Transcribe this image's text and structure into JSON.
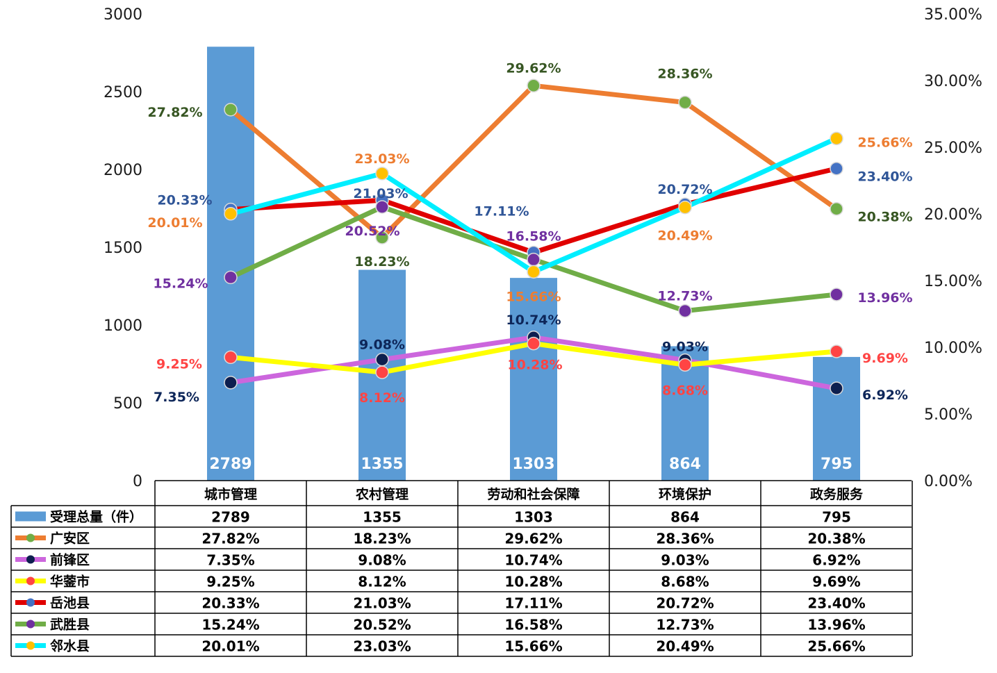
{
  "chart_data": {
    "type": "bar+line",
    "categories": [
      "城市管理",
      "农村管理",
      "劳动和社会保障",
      "环境保护",
      "政务服务"
    ],
    "bar_series": {
      "name": "受理总量（件）",
      "values": [
        2789,
        1355,
        1303,
        864,
        795
      ],
      "value_labels": [
        "2789",
        "1355",
        "1303",
        "864",
        "795"
      ],
      "color": "#5B9BD5"
    },
    "line_series": [
      {
        "name": "广安区",
        "values": [
          27.82,
          18.23,
          29.62,
          28.36,
          20.38
        ],
        "labels": [
          "27.82%",
          "18.23%",
          "29.62%",
          "28.36%",
          "20.38%"
        ],
        "color": "#ED7D31",
        "marker_color": "#70AD47",
        "label_color": "#375623"
      },
      {
        "name": "前锋区",
        "values": [
          7.35,
          9.08,
          10.74,
          9.03,
          6.92
        ],
        "labels": [
          "7.35%",
          "9.08%",
          "10.74%",
          "9.03%",
          "6.92%"
        ],
        "color": "#CC66DD",
        "marker_color": "#0D1F4F",
        "label_color": "#0D2659"
      },
      {
        "name": "华蓥市",
        "values": [
          9.25,
          8.12,
          10.28,
          8.68,
          9.69
        ],
        "labels": [
          "9.25%",
          "8.12%",
          "10.28%",
          "8.68%",
          "9.69%"
        ],
        "color": "#FFFF00",
        "marker_color": "#FF4444",
        "label_color": "#FF4444"
      },
      {
        "name": "岳池县",
        "values": [
          20.33,
          21.03,
          17.11,
          20.72,
          23.4
        ],
        "labels": [
          "20.33%",
          "21.03%",
          "17.11%",
          "20.72%",
          "23.40%"
        ],
        "color": "#E00000",
        "marker_color": "#4472C4",
        "label_color": "#2F5597"
      },
      {
        "name": "武胜县",
        "values": [
          15.24,
          20.52,
          16.58,
          12.73,
          13.96
        ],
        "labels": [
          "15.24%",
          "20.52%",
          "16.58%",
          "12.73%",
          "13.96%"
        ],
        "color": "#70AD47",
        "marker_color": "#7030A0",
        "label_color": "#7030A0"
      },
      {
        "name": "邻水县",
        "values": [
          20.01,
          23.03,
          15.66,
          20.49,
          25.66
        ],
        "labels": [
          "20.01%",
          "23.03%",
          "15.66%",
          "20.49%",
          "25.66%"
        ],
        "color": "#00EEFF",
        "marker_color": "#FFC000",
        "label_color": "#ED7D31"
      }
    ],
    "y_left": {
      "min": 0,
      "max": 3000,
      "ticks": [
        "0",
        "500",
        "1000",
        "1500",
        "2000",
        "2500",
        "3000"
      ]
    },
    "y_right": {
      "min": 0,
      "max": 35,
      "ticks": [
        "0.00%",
        "5.00%",
        "10.00%",
        "15.00%",
        "20.00%",
        "25.00%",
        "30.00%",
        "35.00%"
      ]
    },
    "table": {
      "rows": [
        [
          "2789",
          "1355",
          "1303",
          "864",
          "795"
        ],
        [
          "27.82%",
          "18.23%",
          "29.62%",
          "28.36%",
          "20.38%"
        ],
        [
          "7.35%",
          "9.08%",
          "10.74%",
          "9.03%",
          "6.92%"
        ],
        [
          "9.25%",
          "8.12%",
          "10.28%",
          "8.68%",
          "9.69%"
        ],
        [
          "20.33%",
          "21.03%",
          "17.11%",
          "20.72%",
          "23.40%"
        ],
        [
          "15.24%",
          "20.52%",
          "16.58%",
          "12.73%",
          "13.96%"
        ],
        [
          "20.01%",
          "23.03%",
          "15.66%",
          "20.49%",
          "25.66%"
        ]
      ]
    },
    "legend_placement": "data-table",
    "grid": false
  }
}
